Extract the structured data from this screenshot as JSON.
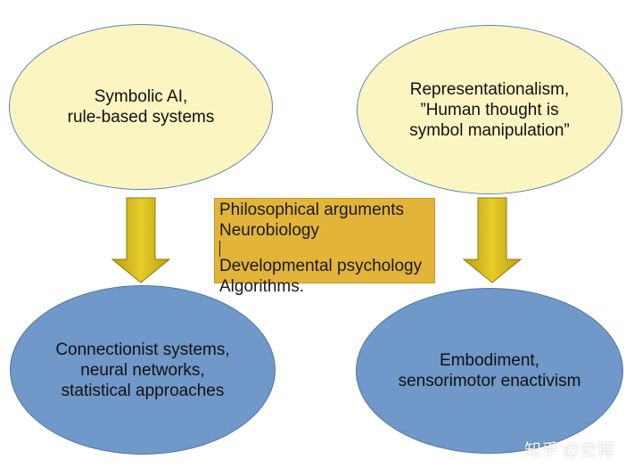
{
  "diagram": {
    "top_left": {
      "lines": [
        "Symbolic AI,",
        "rule-based systems"
      ]
    },
    "top_right": {
      "lines": [
        "Representationalism,",
        "”Human thought is",
        "symbol manipulation”"
      ]
    },
    "bottom_left": {
      "lines": [
        "Connectionist systems,",
        "neural networks,",
        "statistical approaches"
      ]
    },
    "bottom_right": {
      "lines": [
        "Embodiment,",
        "sensorimotor enactivism"
      ]
    },
    "center": {
      "lines": [
        "Philosophical arguments",
        "Neurobiology",
        "Developmental psychology",
        "Algorithms."
      ]
    }
  },
  "watermark": "知乎 @史博",
  "colors": {
    "top_fill": "#fbf5c2",
    "bottom_fill": "#7098c8",
    "outline": "#5b86b3",
    "center_fill": "#e2b43a",
    "arrow_fill": "#d6b81c"
  }
}
